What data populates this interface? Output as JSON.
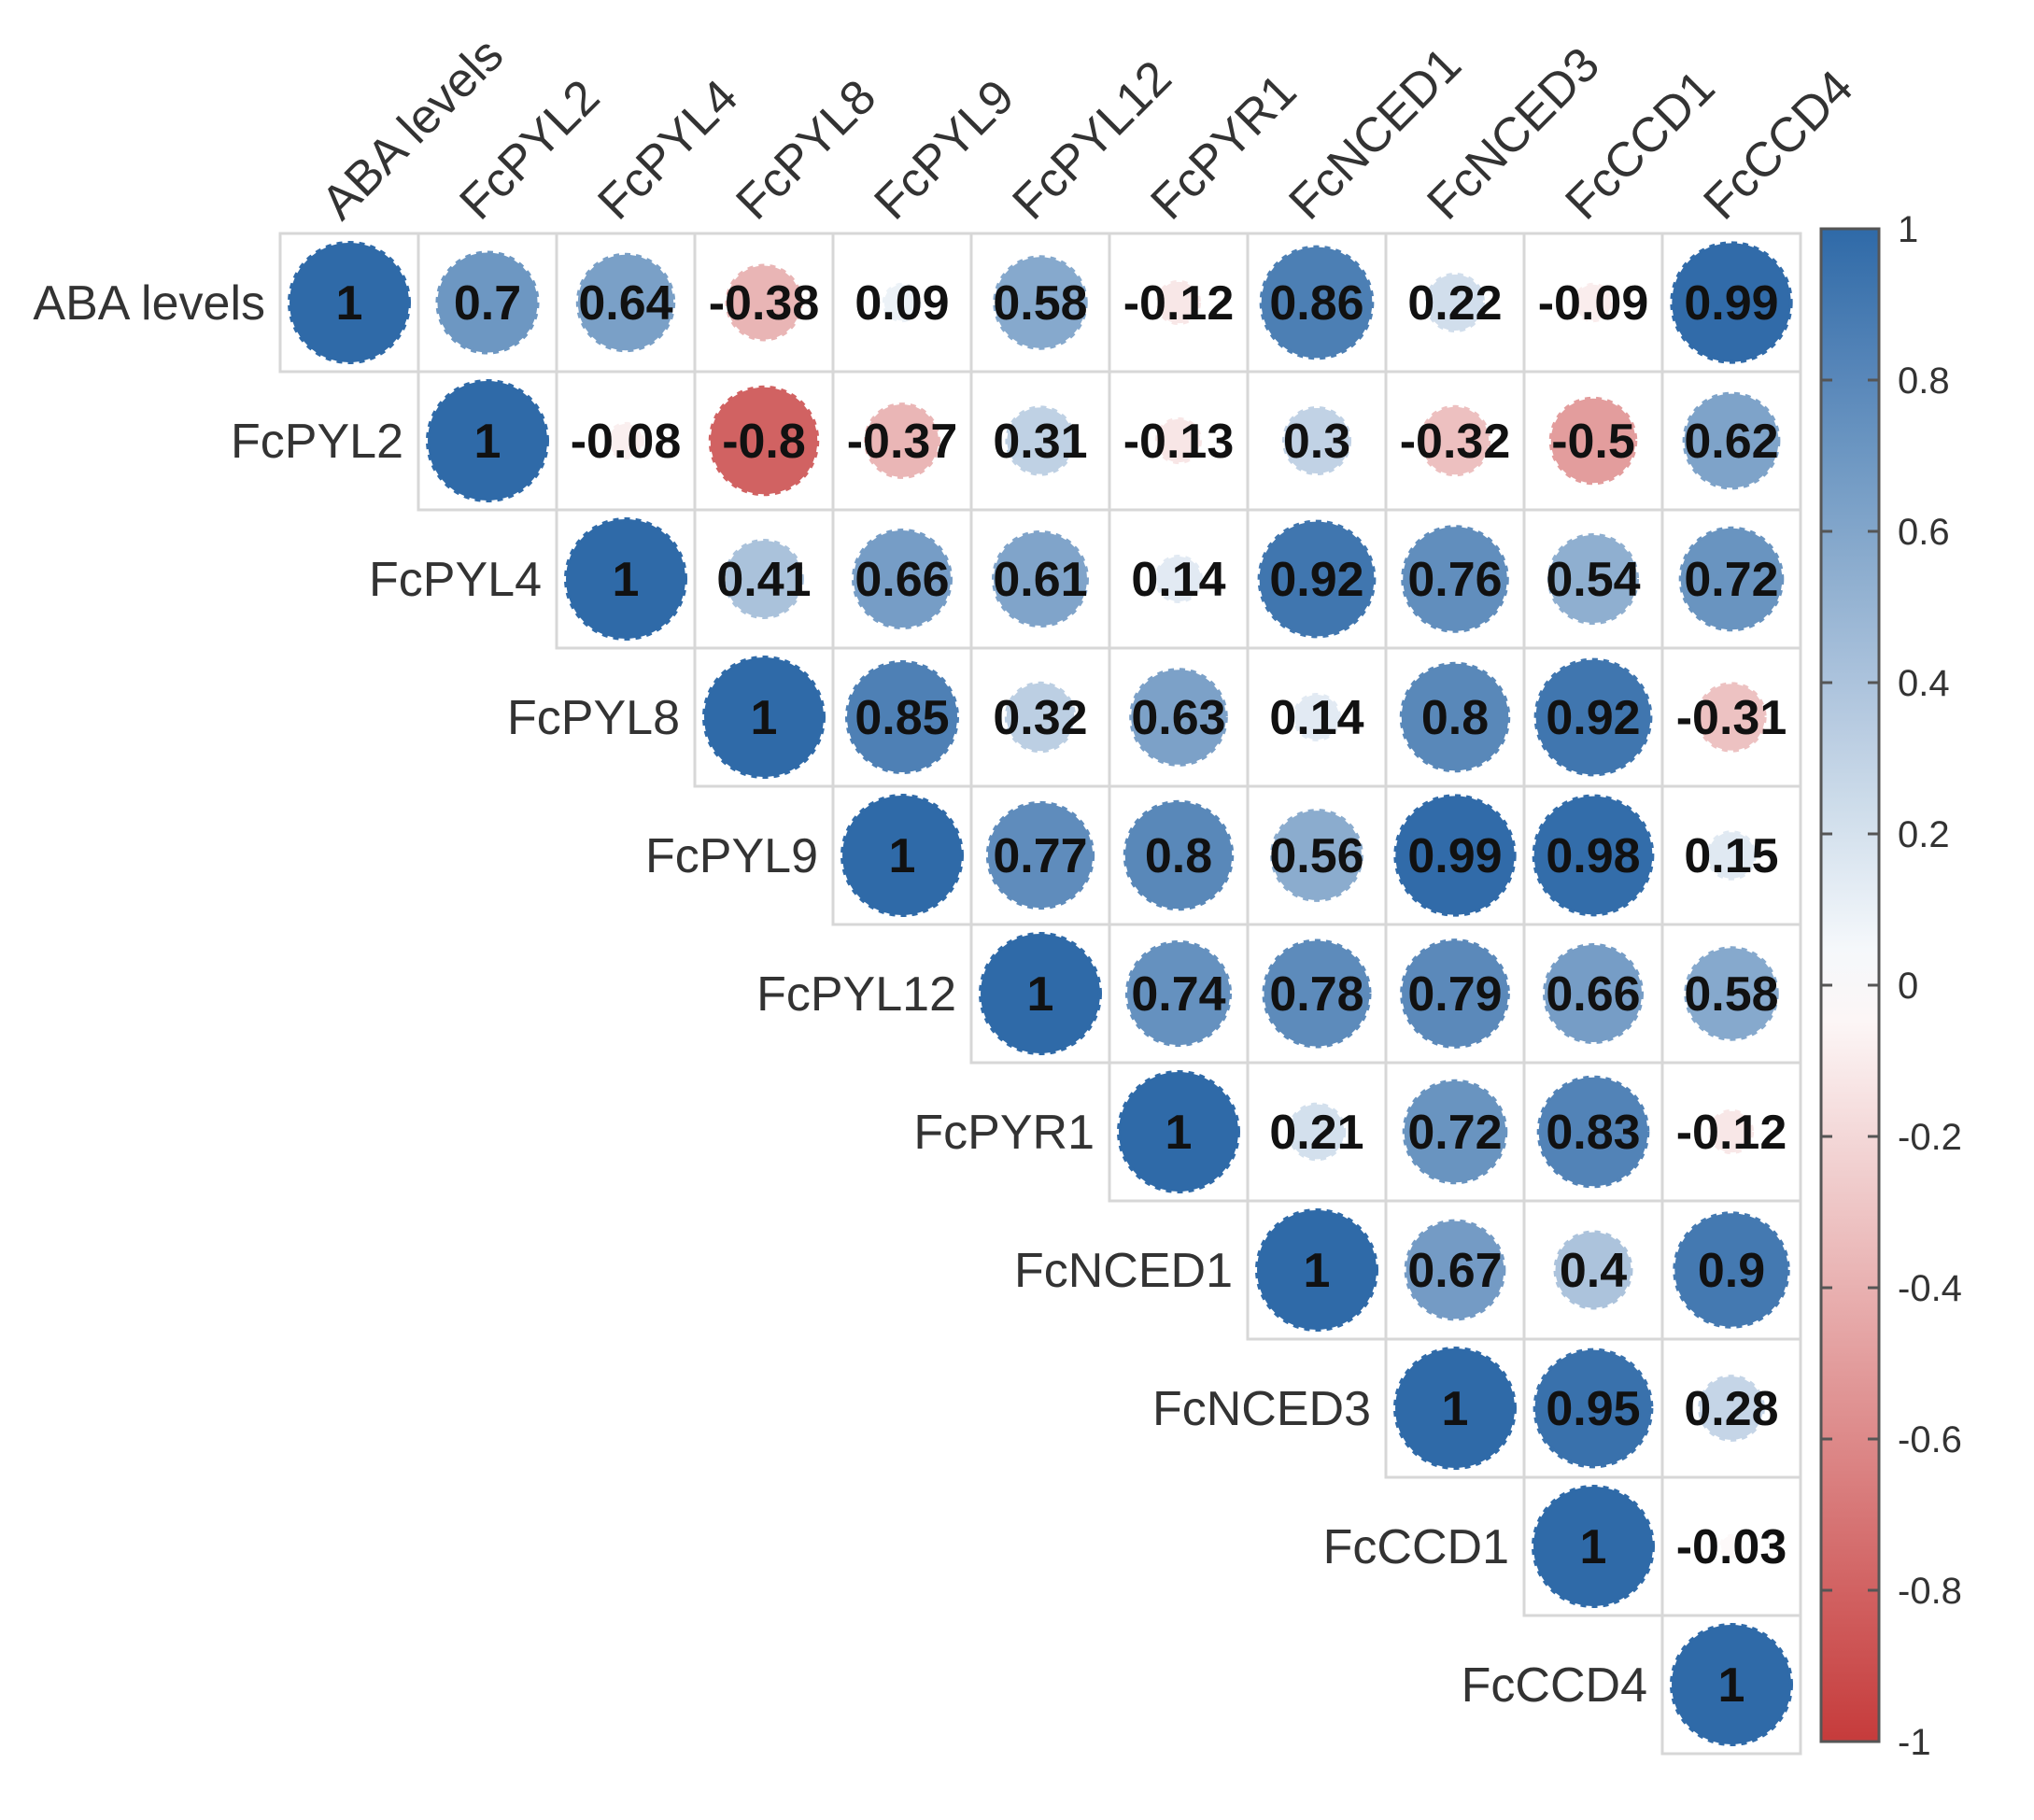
{
  "chart_data": {
    "type": "heatmap",
    "variables": [
      "ABA levels",
      "FcPYL2",
      "FcPYL4",
      "FcPYL8",
      "FcPYL9",
      "FcPYL12",
      "FcPYR1",
      "FcNCED1",
      "FcNCED3",
      "FcCCD1",
      "FcCCD4"
    ],
    "matrix": [
      [
        1,
        0.7,
        0.64,
        -0.38,
        0.09,
        0.58,
        -0.12,
        0.86,
        0.22,
        -0.09,
        0.99
      ],
      [
        null,
        1,
        -0.08,
        -0.8,
        -0.37,
        0.31,
        -0.13,
        0.3,
        -0.32,
        -0.5,
        0.62
      ],
      [
        null,
        null,
        1,
        0.41,
        0.66,
        0.61,
        0.14,
        0.92,
        0.76,
        0.54,
        0.72
      ],
      [
        null,
        null,
        null,
        1,
        0.85,
        0.32,
        0.63,
        0.14,
        0.8,
        0.92,
        -0.31
      ],
      [
        null,
        null,
        null,
        null,
        1,
        0.77,
        0.8,
        0.56,
        0.99,
        0.98,
        0.15
      ],
      [
        null,
        null,
        null,
        null,
        null,
        1,
        0.74,
        0.78,
        0.79,
        0.66,
        0.58
      ],
      [
        null,
        null,
        null,
        null,
        null,
        null,
        1,
        0.21,
        0.72,
        0.83,
        -0.12
      ],
      [
        null,
        null,
        null,
        null,
        null,
        null,
        null,
        1,
        0.67,
        0.4,
        0.9
      ],
      [
        null,
        null,
        null,
        null,
        null,
        null,
        null,
        null,
        1,
        0.95,
        0.28
      ],
      [
        null,
        null,
        null,
        null,
        null,
        null,
        null,
        null,
        null,
        1,
        -0.03
      ],
      [
        null,
        null,
        null,
        null,
        null,
        null,
        null,
        null,
        null,
        null,
        1
      ]
    ],
    "value_range": [
      -1,
      1
    ],
    "colorbar": {
      "ticks": [
        "1",
        "0.8",
        "0.6",
        "0.4",
        "0.2",
        "0",
        "-0.2",
        "-0.4",
        "-0.6",
        "-0.8",
        "-1"
      ],
      "tick_values": [
        1,
        0.8,
        0.6,
        0.4,
        0.2,
        0,
        -0.2,
        -0.4,
        -0.6,
        -0.8,
        -1
      ],
      "position": "right"
    },
    "colors": {
      "positive": "#2F6AA8",
      "zero": "#ffffff",
      "negative": "#C63B3B"
    },
    "layout": "upper-triangle",
    "marker": "circle"
  }
}
